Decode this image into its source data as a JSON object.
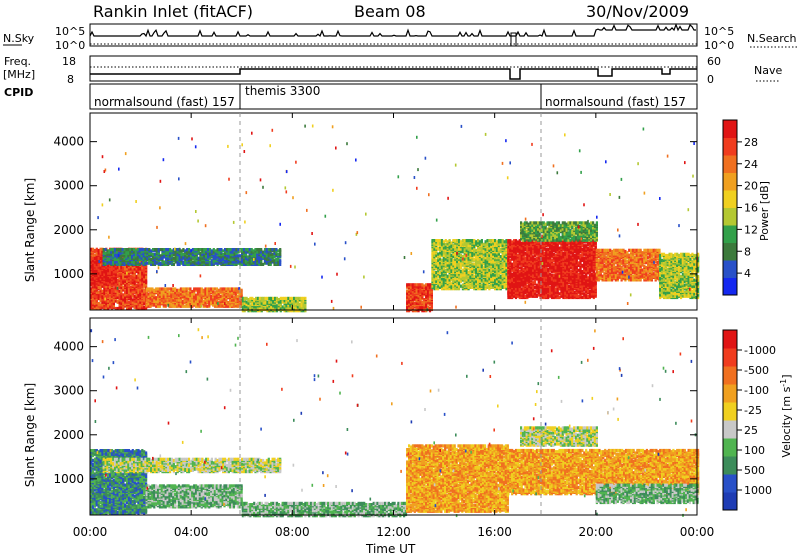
{
  "header": {
    "station": "Rankin Inlet (fitACF)",
    "beam": "Beam 08",
    "date": "30/Nov/2009"
  },
  "panels": {
    "nsky_label": "N.Sky",
    "nsky_ticks": [
      "10^5",
      "10^0"
    ],
    "nsearch_label": "N.Search",
    "nsearch_ticks": [
      "10^5",
      "10^0"
    ],
    "freq_label": "Freq.",
    "freq_unit": "[MHz]",
    "freq_ticks": [
      "18",
      "8"
    ],
    "nave_label": "Nave",
    "nave_ticks": [
      "60",
      "0"
    ],
    "cpid_label": "CPID",
    "cpid_segments": [
      {
        "name": "normalsound (fast) 157",
        "start_h": 0,
        "end_h": 6
      },
      {
        "name": "themis 3300",
        "start_h": 6,
        "end_h": 18
      },
      {
        "name": "normalsound (fast) 157",
        "start_h": 18,
        "end_h": 24
      }
    ]
  },
  "chart_data": [
    {
      "type": "heatmap",
      "title": "",
      "xlabel": "Time UT",
      "ylabel": "Slant Range [km]",
      "x_ticks": [
        "00:00",
        "04:00",
        "08:00",
        "12:00",
        "16:00",
        "20:00",
        "00:00"
      ],
      "x_range_hours": [
        0,
        24
      ],
      "y_ticks": [
        1000,
        2000,
        3000,
        4000
      ],
      "ylim": [
        180,
        4650
      ],
      "colorbar": {
        "label": "Power [dB]",
        "ticks": [
          "4",
          "8",
          "12",
          "16",
          "20",
          "24",
          "28"
        ],
        "colors": [
          "#1428f0",
          "#2850c8",
          "#3c7a3c",
          "#32a04a",
          "#b4c832",
          "#f0d020",
          "#f0a020",
          "#f07020",
          "#f03c1e",
          "#e01414"
        ]
      },
      "regions": [
        {
          "t0": 0,
          "t1": 2.2,
          "r0": 250,
          "r1": 1600,
          "level": 8
        },
        {
          "t0": 0,
          "t1": 1.0,
          "r0": 800,
          "r1": 1400,
          "level": 9
        },
        {
          "t0": 2.2,
          "t1": 6.0,
          "r0": 300,
          "r1": 700,
          "level": 7
        },
        {
          "t0": 0.5,
          "t1": 7.5,
          "r0": 1250,
          "r1": 1600,
          "level": 2
        },
        {
          "t0": 6,
          "t1": 8.5,
          "r0": 200,
          "r1": 500,
          "level": 4
        },
        {
          "t0": 12.5,
          "t1": 13.5,
          "r0": 200,
          "r1": 800,
          "level": 8
        },
        {
          "t0": 13.5,
          "t1": 16.5,
          "r0": 700,
          "r1": 1800,
          "level": 4
        },
        {
          "t0": 16.5,
          "t1": 20.0,
          "r0": 500,
          "r1": 1800,
          "level": 9
        },
        {
          "t0": 20.0,
          "t1": 22.5,
          "r0": 900,
          "r1": 1600,
          "level": 7
        },
        {
          "t0": 17,
          "t1": 20,
          "r0": 1800,
          "r1": 2200,
          "level": 3
        },
        {
          "t0": 22.5,
          "t1": 24,
          "r0": 500,
          "r1": 1500,
          "level": 4
        }
      ]
    },
    {
      "type": "heatmap",
      "title": "",
      "xlabel": "Time UT",
      "ylabel": "Slant Range [km]",
      "x_ticks": [
        "00:00",
        "04:00",
        "08:00",
        "12:00",
        "16:00",
        "20:00",
        "00:00"
      ],
      "x_range_hours": [
        0,
        24
      ],
      "y_ticks": [
        1000,
        2000,
        3000,
        4000
      ],
      "ylim": [
        180,
        4650
      ],
      "colorbar": {
        "label": "Velocity [m s^-1]",
        "ticks": [
          "1000",
          "500",
          "100",
          "25",
          "-25",
          "-100",
          "-500",
          "-1000"
        ],
        "colors": [
          "#1e3cb4",
          "#2850c8",
          "#3c8c5a",
          "#50b450",
          "#c8c8c8",
          "#f0d020",
          "#f0a020",
          "#f07020",
          "#f03c1e",
          "#e01414"
        ]
      },
      "regions": [
        {
          "t0": 0,
          "t1": 2.2,
          "r0": 250,
          "r1": 1700,
          "level": 2
        },
        {
          "t0": 2.2,
          "t1": 6.0,
          "r0": 400,
          "r1": 900,
          "level": 3
        },
        {
          "t0": 0.5,
          "t1": 7.5,
          "r0": 1200,
          "r1": 1500,
          "level": 4
        },
        {
          "t0": 6,
          "t1": 12.5,
          "r0": 200,
          "r1": 500,
          "level": 3
        },
        {
          "t0": 12.5,
          "t1": 16.5,
          "r0": 300,
          "r1": 1800,
          "level": 6
        },
        {
          "t0": 16.5,
          "t1": 24,
          "r0": 700,
          "r1": 1700,
          "level": 6
        },
        {
          "t0": 17,
          "t1": 20,
          "r0": 1800,
          "r1": 2200,
          "level": 4
        },
        {
          "t0": 20,
          "t1": 24,
          "r0": 500,
          "r1": 900,
          "level": 3
        }
      ]
    }
  ]
}
